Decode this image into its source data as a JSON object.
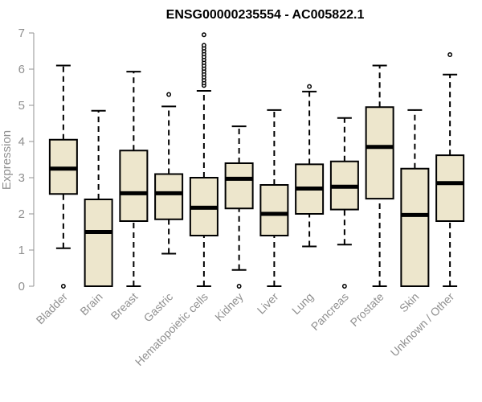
{
  "chart_data": {
    "type": "boxplot",
    "title": "ENSG00000235554 - AC005822.1",
    "ylabel": "Expression",
    "xlabel": "",
    "ylim": [
      0,
      7
    ],
    "yticks": [
      "0",
      "1",
      "2",
      "3",
      "4",
      "5",
      "6",
      "7"
    ],
    "grid": false,
    "colors": {
      "box_fill": "#ede6cc",
      "box_stroke": "#000000",
      "axis": "#909090"
    },
    "categories": [
      "Bladder",
      "Brain",
      "Breast",
      "Gastric",
      "Hematopoietic cells",
      "Kidney",
      "Liver",
      "Lung",
      "Pancreas",
      "Prostate",
      "Skin",
      "Unknown / Other"
    ],
    "boxes": [
      {
        "min": 1.05,
        "q1": 2.55,
        "median": 3.25,
        "q3": 4.05,
        "max": 6.1,
        "outliers": [
          0
        ]
      },
      {
        "min": 0,
        "q1": 0,
        "median": 1.5,
        "q3": 2.4,
        "max": 4.85,
        "outliers": []
      },
      {
        "min": 0,
        "q1": 1.8,
        "median": 2.57,
        "q3": 3.75,
        "max": 5.93,
        "outliers": []
      },
      {
        "min": 0.9,
        "q1": 1.85,
        "median": 2.57,
        "q3": 3.1,
        "max": 4.97,
        "outliers": [
          5.3
        ]
      },
      {
        "min": 0,
        "q1": 1.4,
        "median": 2.17,
        "q3": 3.0,
        "max": 5.4,
        "outliers": [
          5.55,
          5.62,
          5.7,
          5.78,
          5.86,
          5.94,
          6.02,
          6.1,
          6.18,
          6.26,
          6.34,
          6.42,
          6.5,
          6.58,
          6.66,
          6.95
        ]
      },
      {
        "min": 0.45,
        "q1": 2.15,
        "median": 2.97,
        "q3": 3.4,
        "max": 4.42,
        "outliers": [
          0
        ]
      },
      {
        "min": 0,
        "q1": 1.4,
        "median": 2.0,
        "q3": 2.8,
        "max": 4.87,
        "outliers": []
      },
      {
        "min": 1.1,
        "q1": 2.0,
        "median": 2.7,
        "q3": 3.37,
        "max": 5.38,
        "outliers": [
          5.52
        ]
      },
      {
        "min": 1.15,
        "q1": 2.12,
        "median": 2.75,
        "q3": 3.45,
        "max": 4.65,
        "outliers": [
          0
        ]
      },
      {
        "min": 0,
        "q1": 2.42,
        "median": 3.85,
        "q3": 4.95,
        "max": 6.1,
        "outliers": []
      },
      {
        "min": 0,
        "q1": 0,
        "median": 1.97,
        "q3": 3.25,
        "max": 4.87,
        "outliers": []
      },
      {
        "min": 0,
        "q1": 1.8,
        "median": 2.85,
        "q3": 3.62,
        "max": 5.85,
        "outliers": [
          6.4
        ]
      }
    ]
  }
}
